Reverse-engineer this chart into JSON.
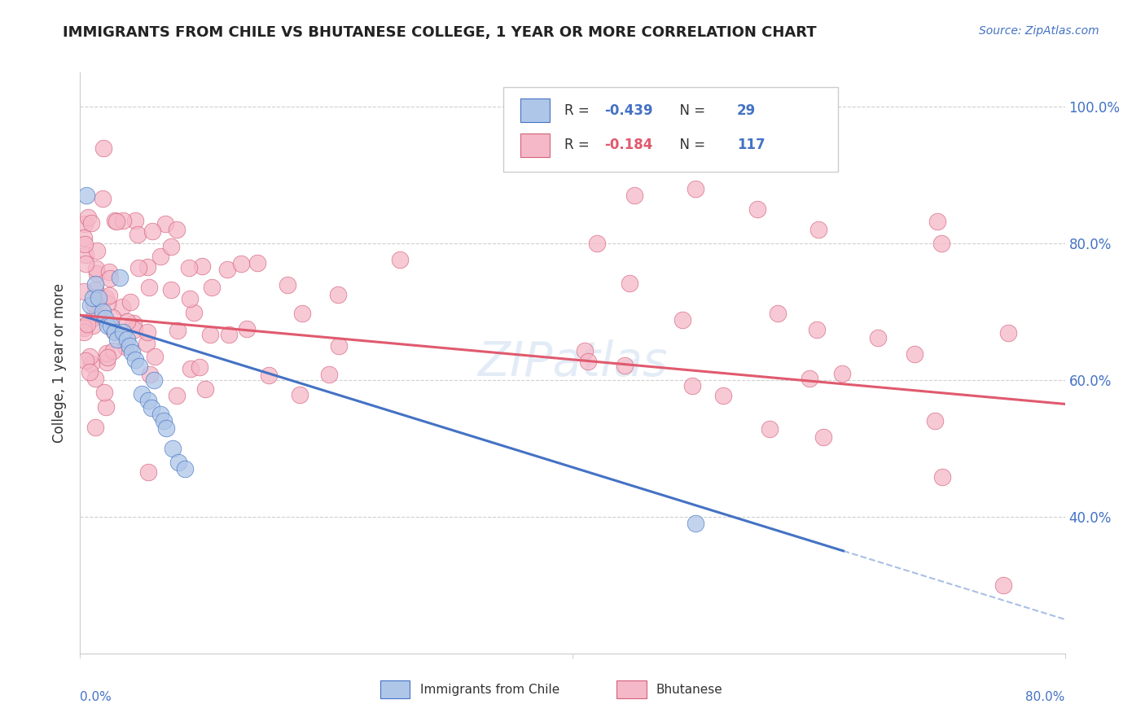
{
  "title": "IMMIGRANTS FROM CHILE VS BHUTANESE COLLEGE, 1 YEAR OR MORE CORRELATION CHART",
  "source": "Source: ZipAtlas.com",
  "ylabel": "College, 1 year or more",
  "legend_bottom": [
    "Immigrants from Chile",
    "Bhutanese"
  ],
  "chile_R": -0.439,
  "chile_N": 29,
  "bhutan_R": -0.184,
  "bhutan_N": 117,
  "chile_color": "#aec6e8",
  "bhutan_color": "#f5b8c8",
  "chile_line_color": "#4472c4",
  "bhutan_line_color": "#e05a6e",
  "watermark": "ZIPatlas",
  "xmin": 0.0,
  "xmax": 0.8,
  "ymin": 0.2,
  "ymax": 1.05,
  "yticks": [
    0.4,
    0.6,
    0.8,
    1.0
  ],
  "ytick_labels": [
    "40.0%",
    "60.0%",
    "80.0%",
    "100.0%"
  ],
  "chile_line_x0": 0.0,
  "chile_line_x1": 0.62,
  "chile_line_y0": 0.695,
  "chile_line_y1": 0.35,
  "bhutan_line_x0": 0.0,
  "bhutan_line_x1": 0.8,
  "bhutan_line_y0": 0.695,
  "bhutan_line_y1": 0.565
}
